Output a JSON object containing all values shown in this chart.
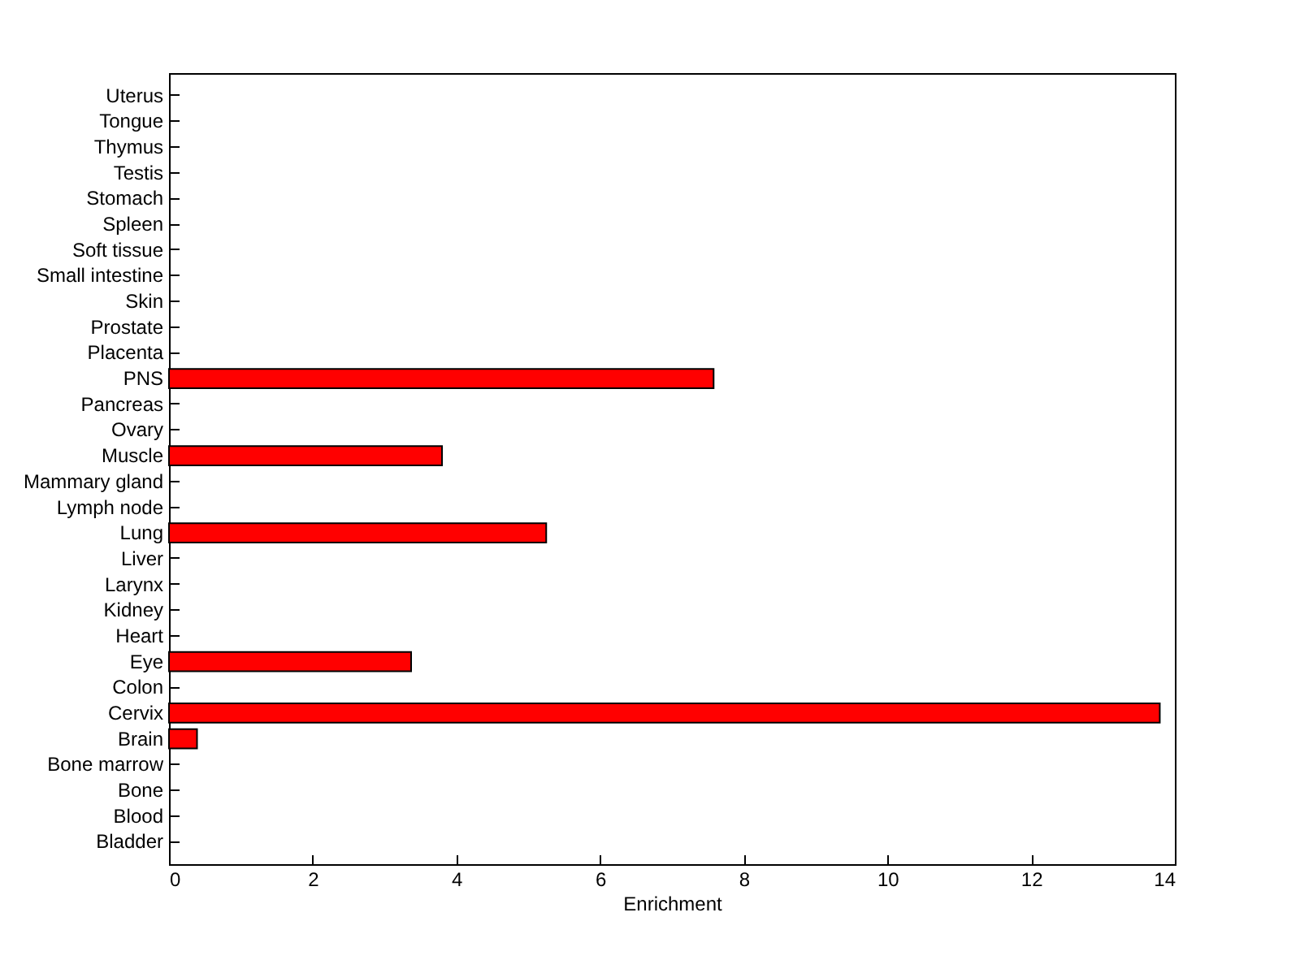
{
  "chart_data": {
    "type": "bar",
    "orientation": "horizontal",
    "xlabel": "Enrichment",
    "categories": [
      "Uterus",
      "Tongue",
      "Thymus",
      "Testis",
      "Stomach",
      "Spleen",
      "Soft tissue",
      "Small intestine",
      "Skin",
      "Prostate",
      "Placenta",
      "PNS",
      "Pancreas",
      "Ovary",
      "Muscle",
      "Mammary gland",
      "Lymph node",
      "Lung",
      "Liver",
      "Larynx",
      "Kidney",
      "Heart",
      "Eye",
      "Colon",
      "Cervix",
      "Brain",
      "Bone marrow",
      "Bone",
      "Blood",
      "Bladder"
    ],
    "values": [
      0,
      0,
      0,
      0,
      0,
      0,
      0,
      0,
      0,
      0,
      0,
      7.58,
      0,
      0,
      3.8,
      0,
      0,
      5.25,
      0,
      0,
      0,
      0,
      3.37,
      0,
      13.79,
      0.39,
      0,
      0,
      0,
      0
    ],
    "color": "#ff0000",
    "xlim": [
      0,
      14
    ],
    "xticks": [
      0,
      2,
      4,
      6,
      8,
      10,
      12,
      14
    ],
    "grid": false
  }
}
